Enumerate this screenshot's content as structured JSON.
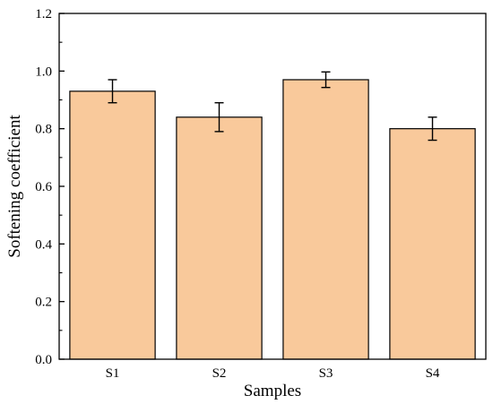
{
  "chart_data": {
    "type": "bar",
    "title": "",
    "xlabel": "Samples",
    "ylabel": "Softening coefficient",
    "categories": [
      "S1",
      "S2",
      "S3",
      "S4"
    ],
    "series": [
      {
        "values": [
          0.93,
          0.84,
          0.97,
          0.8
        ],
        "error": [
          0.04,
          0.05,
          0.027,
          0.04
        ]
      }
    ],
    "ylim": [
      0,
      1.2
    ],
    "yticks": [
      "0.0",
      "0.2",
      "0.4",
      "0.6",
      "0.8",
      "1.0",
      "1.2"
    ],
    "grid": false,
    "legend": "none",
    "colors": {
      "bar_fill": "#F9C99B",
      "bar_stroke": "#000000",
      "axis": "#000000"
    }
  }
}
